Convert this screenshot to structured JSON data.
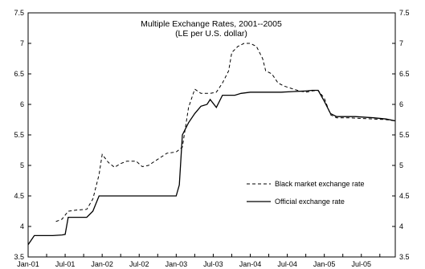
{
  "chart_data": {
    "type": "line",
    "title": "Multiple Exchange Rates, 2001--2005",
    "subtitle": "(LE per U.S. dollar)",
    "xlabel": "",
    "ylabel": "",
    "x_ticks": [
      "Jan-01",
      "Jul-01",
      "Jan-02",
      "Jul-02",
      "Jan-03",
      "Jul-03",
      "Jan-04",
      "Jul-04",
      "Jan-05",
      "Jul-05"
    ],
    "y_ticks": [
      "3.5",
      "4",
      "4.5",
      "5",
      "5.5",
      "6",
      "6.5",
      "7",
      "7.5"
    ],
    "ylim": [
      3.5,
      7.5
    ],
    "xlim_months": [
      0,
      59.5
    ],
    "grid": false,
    "legend_position": "center-right",
    "series": [
      {
        "name": "Black market exchange rate",
        "style": "dashed",
        "color": "#000000",
        "points": [
          [
            4.5,
            4.08
          ],
          [
            5.5,
            4.12
          ],
          [
            6.5,
            4.25
          ],
          [
            8,
            4.27
          ],
          [
            9.5,
            4.28
          ],
          [
            10.5,
            4.45
          ],
          [
            11.5,
            4.85
          ],
          [
            12,
            5.18
          ],
          [
            13,
            5.05
          ],
          [
            14,
            4.97
          ],
          [
            15,
            5.03
          ],
          [
            16,
            5.07
          ],
          [
            17.5,
            5.07
          ],
          [
            18.5,
            4.98
          ],
          [
            19.5,
            5.0
          ],
          [
            21,
            5.1
          ],
          [
            22.5,
            5.2
          ],
          [
            24,
            5.22
          ],
          [
            25,
            5.3
          ],
          [
            26,
            5.95
          ],
          [
            27,
            6.25
          ],
          [
            28,
            6.18
          ],
          [
            29.5,
            6.18
          ],
          [
            30.5,
            6.2
          ],
          [
            31.5,
            6.35
          ],
          [
            32.5,
            6.55
          ],
          [
            33,
            6.85
          ],
          [
            34,
            6.95
          ],
          [
            35,
            7.0
          ],
          [
            36,
            7.0
          ],
          [
            37,
            6.95
          ],
          [
            38,
            6.75
          ],
          [
            38.5,
            6.55
          ],
          [
            39.5,
            6.5
          ],
          [
            40.5,
            6.35
          ],
          [
            41.5,
            6.3
          ],
          [
            43,
            6.25
          ],
          [
            44,
            6.22
          ],
          [
            45,
            6.2
          ],
          [
            46,
            6.22
          ],
          [
            47,
            6.23
          ],
          [
            48,
            6.1
          ],
          [
            49,
            5.83
          ],
          [
            50,
            5.78
          ],
          [
            52,
            5.78
          ],
          [
            54,
            5.77
          ],
          [
            56,
            5.76
          ],
          [
            58,
            5.75
          ],
          [
            59.5,
            5.73
          ]
        ]
      },
      {
        "name": "Official exchange rate",
        "style": "solid",
        "color": "#000000",
        "points": [
          [
            0,
            3.7
          ],
          [
            1,
            3.85
          ],
          [
            2.5,
            3.85
          ],
          [
            4,
            3.85
          ],
          [
            5.5,
            3.86
          ],
          [
            6,
            3.87
          ],
          [
            6.5,
            4.15
          ],
          [
            8,
            4.15
          ],
          [
            9.5,
            4.15
          ],
          [
            10.5,
            4.25
          ],
          [
            11.5,
            4.5
          ],
          [
            24,
            4.5
          ],
          [
            24.5,
            4.68
          ],
          [
            25,
            5.5
          ],
          [
            26,
            5.7
          ],
          [
            27,
            5.85
          ],
          [
            28,
            5.97
          ],
          [
            29,
            6.0
          ],
          [
            29.5,
            6.08
          ],
          [
            30.5,
            5.95
          ],
          [
            31.5,
            6.15
          ],
          [
            33.5,
            6.15
          ],
          [
            34.5,
            6.18
          ],
          [
            36,
            6.2
          ],
          [
            37,
            6.2
          ],
          [
            38.5,
            6.2
          ],
          [
            41,
            6.2
          ],
          [
            43,
            6.21
          ],
          [
            45,
            6.22
          ],
          [
            46,
            6.23
          ],
          [
            47,
            6.23
          ],
          [
            48,
            6.05
          ],
          [
            49,
            5.85
          ],
          [
            50,
            5.8
          ],
          [
            53,
            5.8
          ],
          [
            56,
            5.78
          ],
          [
            58,
            5.76
          ],
          [
            59.5,
            5.73
          ]
        ]
      }
    ]
  }
}
